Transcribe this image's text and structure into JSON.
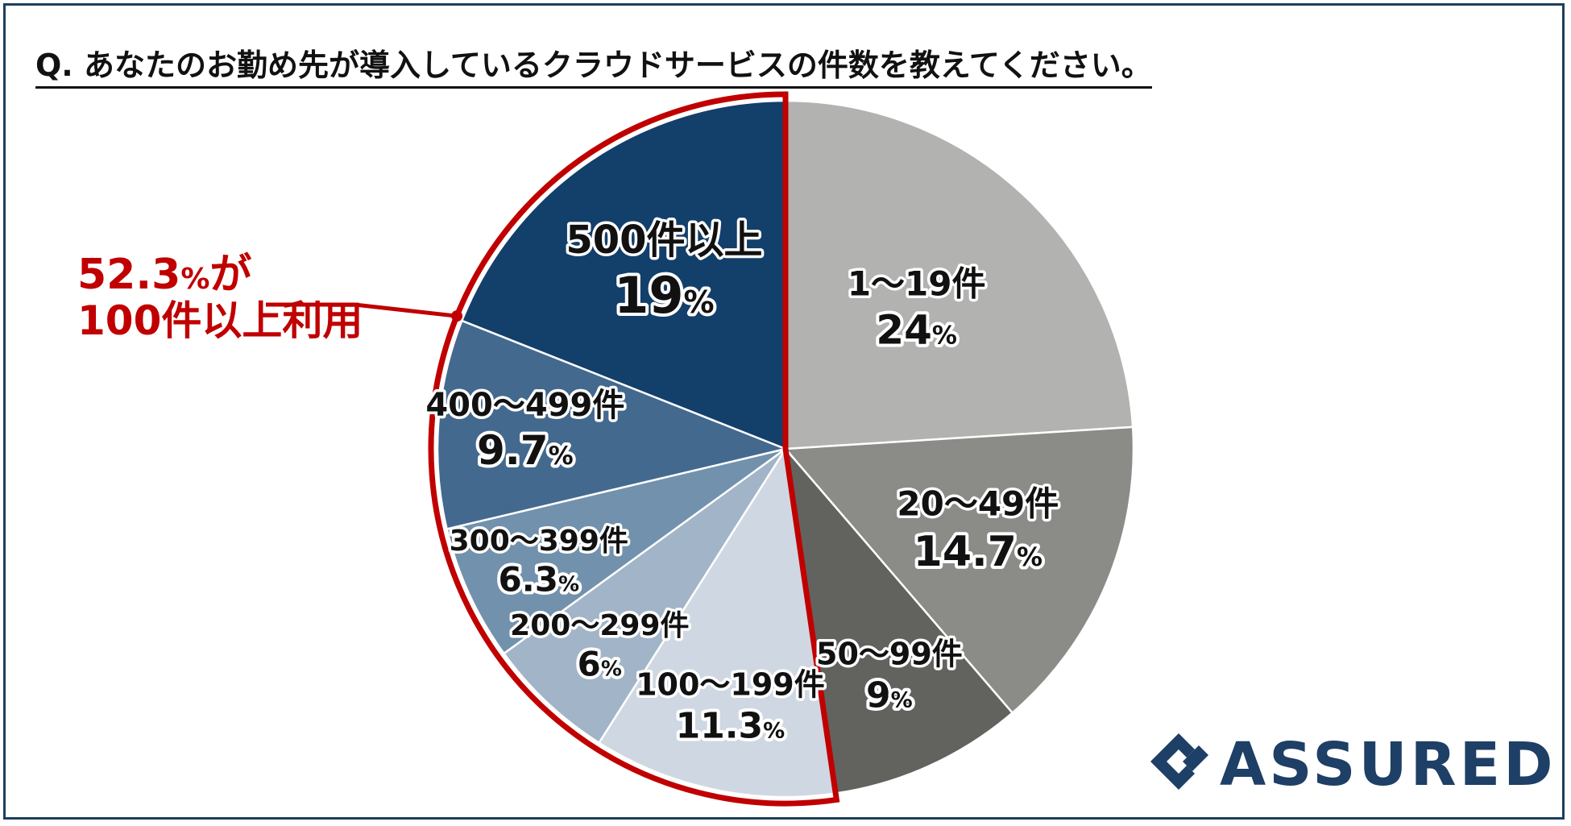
{
  "title": "Q. あなたのお勤め先が導入しているクラウドサービスの件数を教えてください。",
  "callout": {
    "value": "52.3",
    "unit": "%",
    "suffix1": "が",
    "line2_prefix": "100",
    "line2_suffix": "件以上利用"
  },
  "logo": {
    "text": "ASSURED"
  },
  "colors": {
    "highlight_border": "#c00000",
    "brand": "#1e3f66"
  },
  "chart_data": {
    "type": "pie",
    "categories": [
      "1〜19件",
      "20〜49件",
      "50〜99件",
      "100〜199件",
      "200〜299件",
      "300〜399件",
      "400〜499件",
      "500件以上"
    ],
    "values": [
      24,
      14.7,
      9,
      11.3,
      6,
      6.3,
      9.7,
      19
    ],
    "value_labels": [
      "24",
      "14.7",
      "9",
      "11.3",
      "6",
      "6.3",
      "9.7",
      "19"
    ],
    "unit": "%",
    "colors": [
      "#b2b2b0",
      "#8b8b87",
      "#62635f",
      "#cfd8e2",
      "#a2b4c7",
      "#7291ad",
      "#44698f",
      "#133f6b"
    ],
    "highlighted_categories": [
      "100〜199件",
      "200〜299件",
      "300〜399件",
      "400〜499件",
      "500件以上"
    ],
    "start_angle_deg": 0,
    "direction": "clockwise"
  }
}
